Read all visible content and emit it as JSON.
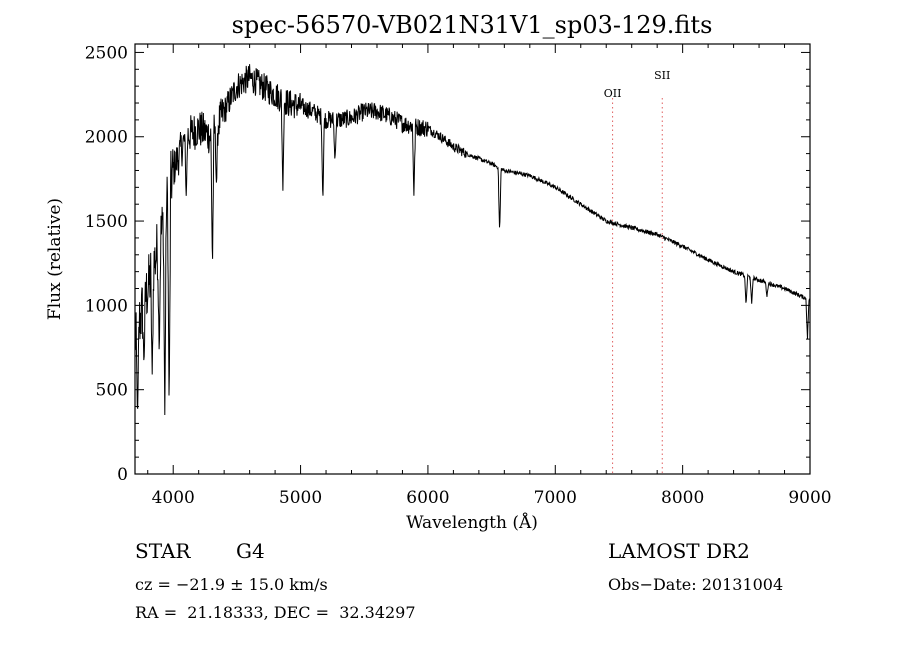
{
  "chart_data": {
    "type": "line",
    "title": "spec-56570-VB021N31V1_sp03-129.fits",
    "xlabel": "Wavelength (Å)",
    "ylabel": "Flux (relative)",
    "xlim": [
      3700,
      9000
    ],
    "ylim": [
      0,
      2550
    ],
    "x_ticks": [
      4000,
      5000,
      6000,
      7000,
      8000,
      9000
    ],
    "y_ticks": [
      0,
      500,
      1000,
      1500,
      2000,
      2500
    ],
    "grid": false,
    "series_color": "#000000",
    "line_marker_color": "#e06060",
    "line_markers": [
      {
        "label": "OII",
        "x": 7450
      },
      {
        "label": "SII",
        "x": 7840
      }
    ],
    "continuum": [
      [
        3700,
        800
      ],
      [
        3800,
        1100
      ],
      [
        3900,
        1400
      ],
      [
        4000,
        1800
      ],
      [
        4100,
        2000
      ],
      [
        4200,
        2050
      ],
      [
        4300,
        2000
      ],
      [
        4400,
        2150
      ],
      [
        4500,
        2300
      ],
      [
        4600,
        2350
      ],
      [
        4700,
        2300
      ],
      [
        4800,
        2250
      ],
      [
        4900,
        2200
      ],
      [
        5000,
        2180
      ],
      [
        5100,
        2150
      ],
      [
        5200,
        2100
      ],
      [
        5300,
        2100
      ],
      [
        5400,
        2110
      ],
      [
        5500,
        2150
      ],
      [
        5600,
        2150
      ],
      [
        5700,
        2120
      ],
      [
        5800,
        2080
      ],
      [
        5900,
        2060
      ],
      [
        6000,
        2050
      ],
      [
        6100,
        2000
      ],
      [
        6200,
        1940
      ],
      [
        6300,
        1900
      ],
      [
        6400,
        1870
      ],
      [
        6500,
        1840
      ],
      [
        6600,
        1800
      ],
      [
        6800,
        1770
      ],
      [
        7000,
        1700
      ],
      [
        7200,
        1600
      ],
      [
        7400,
        1500
      ],
      [
        7500,
        1480
      ],
      [
        7600,
        1460
      ],
      [
        7800,
        1420
      ],
      [
        8000,
        1350
      ],
      [
        8200,
        1270
      ],
      [
        8400,
        1200
      ],
      [
        8600,
        1150
      ],
      [
        8800,
        1100
      ],
      [
        9000,
        1030
      ]
    ],
    "absorption_lines": [
      {
        "x": 3720,
        "y": 330
      },
      {
        "x": 3770,
        "y": 650
      },
      {
        "x": 3835,
        "y": 590
      },
      {
        "x": 3890,
        "y": 700
      },
      {
        "x": 3934,
        "y": 350
      },
      {
        "x": 3968,
        "y": 360
      },
      {
        "x": 4102,
        "y": 1650
      },
      {
        "x": 4308,
        "y": 1210
      },
      {
        "x": 4340,
        "y": 1700
      },
      {
        "x": 4861,
        "y": 1680
      },
      {
        "x": 5175,
        "y": 1610
      },
      {
        "x": 5270,
        "y": 1850
      },
      {
        "x": 5890,
        "y": 1650
      },
      {
        "x": 6563,
        "y": 1430
      },
      {
        "x": 8498,
        "y": 1000
      },
      {
        "x": 8542,
        "y": 1010
      },
      {
        "x": 8662,
        "y": 1050
      },
      {
        "x": 8980,
        "y": 800
      }
    ]
  },
  "info": {
    "object_class": "STAR",
    "subclass": "G4",
    "survey": "LAMOST DR2",
    "redshift": "cz = −21.9 ± 15.0 km/s",
    "obs_date": "Obs−Date: 20131004",
    "coords": "RA =  21.18333, DEC =  32.34297"
  }
}
